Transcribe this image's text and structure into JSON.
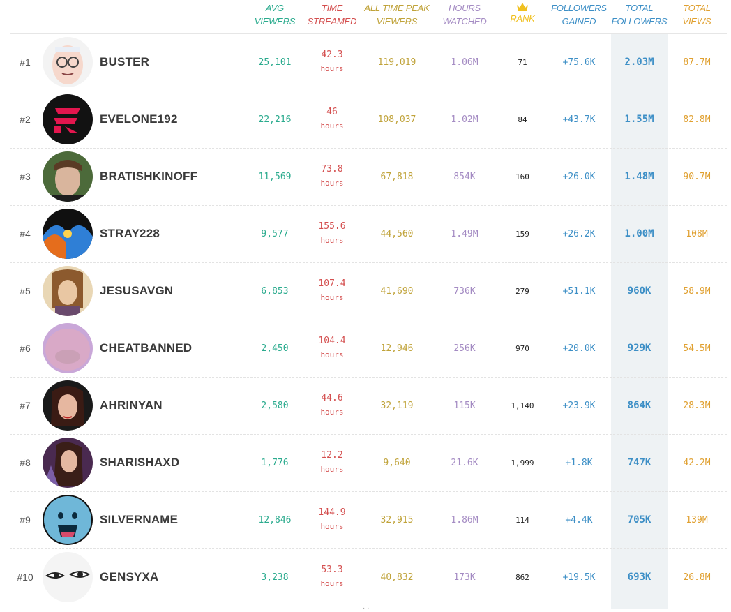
{
  "headers": {
    "avg": [
      "AVG",
      "VIEWERS"
    ],
    "time": [
      "TIME",
      "STREAMED"
    ],
    "peak": [
      "ALL TIME PEAK",
      "VIEWERS"
    ],
    "hours": [
      "HOURS",
      "WATCHED"
    ],
    "rank": "RANK",
    "gain": [
      "FOLLOWERS",
      "GAINED"
    ],
    "total": [
      "TOTAL",
      "FOLLOWERS"
    ],
    "views": [
      "TOTAL",
      "VIEWS"
    ]
  },
  "colors": {
    "avg": "#2bab8e",
    "time": "#d44f4f",
    "peak": "#c0a33a",
    "hours": "#a48bc3",
    "rank": "#f0c020",
    "gain": "#3d8fc6",
    "total": "#3d8fc6",
    "views": "#e0a030"
  },
  "rank_icon": "crown-icon",
  "rows": [
    {
      "rank": "#1",
      "name": "BUSTER",
      "avg": "25,101",
      "time": "42.3",
      "time_unit": "hours",
      "peak": "119,019",
      "hours": "1.06M",
      "rank_pos": "71",
      "gain": "+75.6K",
      "total": "2.03M",
      "views": "87.7M"
    },
    {
      "rank": "#2",
      "name": "EVELONE192",
      "avg": "22,216",
      "time": "46",
      "time_unit": "hours",
      "peak": "108,037",
      "hours": "1.02M",
      "rank_pos": "84",
      "gain": "+43.7K",
      "total": "1.55M",
      "views": "82.8M"
    },
    {
      "rank": "#3",
      "name": "BRATISHKINOFF",
      "avg": "11,569",
      "time": "73.8",
      "time_unit": "hours",
      "peak": "67,818",
      "hours": "854K",
      "rank_pos": "160",
      "gain": "+26.0K",
      "total": "1.48M",
      "views": "90.7M"
    },
    {
      "rank": "#4",
      "name": "STRAY228",
      "avg": "9,577",
      "time": "155.6",
      "time_unit": "hours",
      "peak": "44,560",
      "hours": "1.49M",
      "rank_pos": "159",
      "gain": "+26.2K",
      "total": "1.00M",
      "views": "108M"
    },
    {
      "rank": "#5",
      "name": "JESUSAVGN",
      "avg": "6,853",
      "time": "107.4",
      "time_unit": "hours",
      "peak": "41,690",
      "hours": "736K",
      "rank_pos": "279",
      "gain": "+51.1K",
      "total": "960K",
      "views": "58.9M"
    },
    {
      "rank": "#6",
      "name": "CHEATBANNED",
      "avg": "2,450",
      "time": "104.4",
      "time_unit": "hours",
      "peak": "12,946",
      "hours": "256K",
      "rank_pos": "970",
      "gain": "+20.0K",
      "total": "929K",
      "views": "54.5M"
    },
    {
      "rank": "#7",
      "name": "AHRINYAN",
      "avg": "2,580",
      "time": "44.6",
      "time_unit": "hours",
      "peak": "32,119",
      "hours": "115K",
      "rank_pos": "1,140",
      "gain": "+23.9K",
      "total": "864K",
      "views": "28.3M"
    },
    {
      "rank": "#8",
      "name": "SHARISHAXD",
      "avg": "1,776",
      "time": "12.2",
      "time_unit": "hours",
      "peak": "9,640",
      "hours": "21.6K",
      "rank_pos": "1,999",
      "gain": "+1.8K",
      "total": "747K",
      "views": "42.2M"
    },
    {
      "rank": "#9",
      "name": "SILVERNAME",
      "avg": "12,846",
      "time": "144.9",
      "time_unit": "hours",
      "peak": "32,915",
      "hours": "1.86M",
      "rank_pos": "114",
      "gain": "+4.4K",
      "total": "705K",
      "views": "139M"
    },
    {
      "rank": "#10",
      "name": "GENSYXA",
      "avg": "3,238",
      "time": "53.3",
      "time_unit": "hours",
      "peak": "40,832",
      "hours": "173K",
      "rank_pos": "862",
      "gain": "+19.5K",
      "total": "693K",
      "views": "26.8M"
    }
  ]
}
